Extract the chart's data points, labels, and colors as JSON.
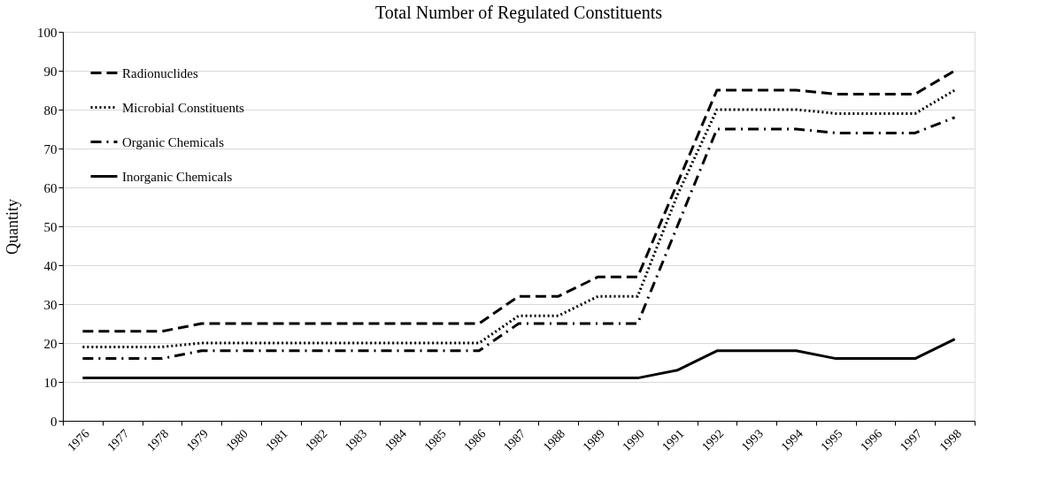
{
  "chart_data": {
    "type": "line",
    "title": "Total Number of Regulated Constituents",
    "ylabel": "Quantity",
    "categories": [
      "1976",
      "1977",
      "1978",
      "1979",
      "1980",
      "1981",
      "1982",
      "1983",
      "1984",
      "1985",
      "1986",
      "1987",
      "1988",
      "1989",
      "1990",
      "1991",
      "1992",
      "1993",
      "1994",
      "1995",
      "1996",
      "1997",
      "1998"
    ],
    "series": [
      {
        "name": "Radionuclides",
        "color": "#000000",
        "line_style": "dashed",
        "values": [
          23,
          23,
          23,
          25,
          25,
          25,
          25,
          25,
          25,
          25,
          25,
          32,
          32,
          37,
          37,
          61,
          85,
          85,
          85,
          84,
          84,
          84,
          90
        ]
      },
      {
        "name": "Microbial Constituents",
        "color": "#000000",
        "line_style": "dotted",
        "values": [
          19,
          19,
          19,
          20,
          20,
          20,
          20,
          20,
          20,
          20,
          20,
          27,
          27,
          32,
          32,
          58,
          80,
          80,
          80,
          79,
          79,
          79,
          85
        ]
      },
      {
        "name": "Organic Chemicals",
        "color": "#000000",
        "line_style": "dashdot",
        "values": [
          16,
          16,
          16,
          18,
          18,
          18,
          18,
          18,
          18,
          18,
          18,
          25,
          25,
          25,
          25,
          50,
          75,
          75,
          75,
          74,
          74,
          74,
          78
        ]
      },
      {
        "name": "Inorganic Chemicals",
        "color": "#000000",
        "line_style": "solid",
        "values": [
          11,
          11,
          11,
          11,
          11,
          11,
          11,
          11,
          11,
          11,
          11,
          11,
          11,
          11,
          11,
          13,
          18,
          18,
          18,
          16,
          16,
          16,
          21
        ]
      }
    ],
    "ylim": [
      0,
      100
    ],
    "yticks": [
      0,
      10,
      20,
      30,
      40,
      50,
      60,
      70,
      80,
      90,
      100
    ],
    "grid": "y",
    "legend": "top left",
    "marker": "none"
  }
}
